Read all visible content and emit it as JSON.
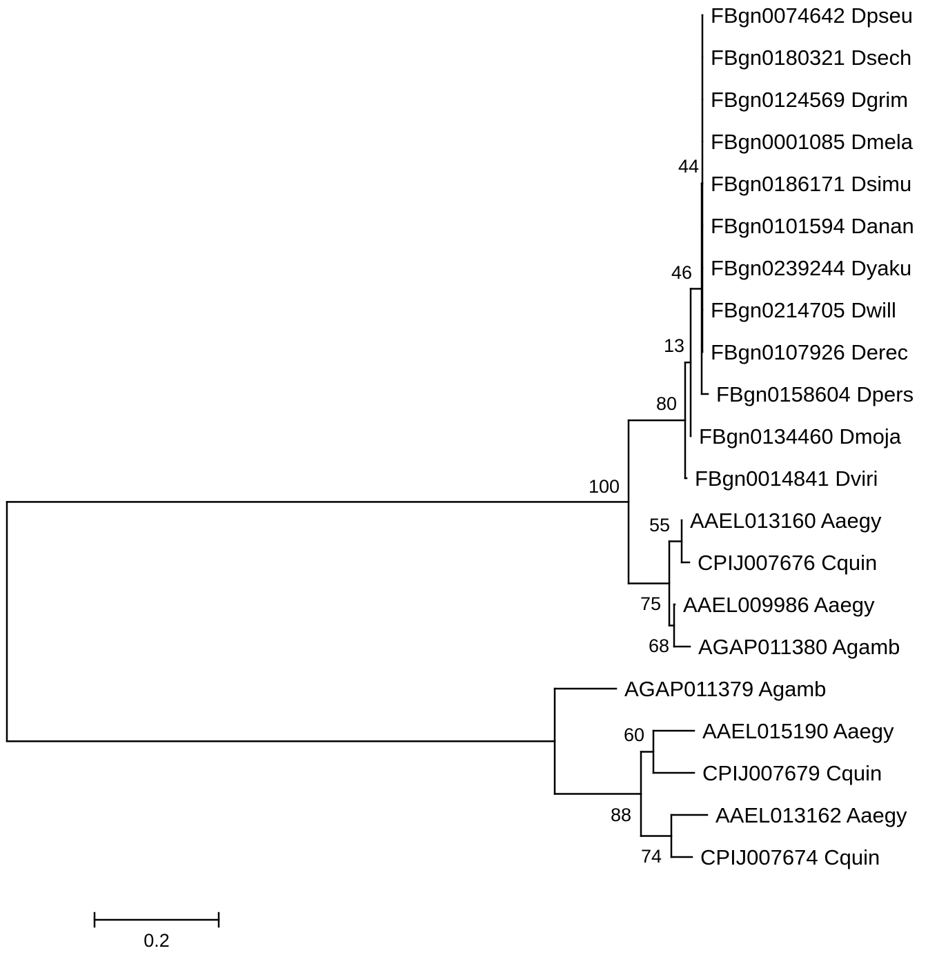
{
  "tree": {
    "leaves": [
      {
        "id": "dpseu",
        "label": "FBgn0074642 Dpseu"
      },
      {
        "id": "dsech",
        "label": "FBgn0180321 Dsech"
      },
      {
        "id": "dgrim",
        "label": "FBgn0124569 Dgrim"
      },
      {
        "id": "dmela",
        "label": "FBgn0001085 Dmela"
      },
      {
        "id": "dsimu",
        "label": "FBgn0186171 Dsimu"
      },
      {
        "id": "danan",
        "label": "FBgn0101594 Danan"
      },
      {
        "id": "dyaku",
        "label": "FBgn0239244 Dyaku"
      },
      {
        "id": "dwill",
        "label": "FBgn0214705 Dwill"
      },
      {
        "id": "derec",
        "label": "FBgn0107926 Derec"
      },
      {
        "id": "dpers",
        "label": "FBgn0158604 Dpers"
      },
      {
        "id": "dmoja",
        "label": "FBgn0134460 Dmoja"
      },
      {
        "id": "dviri",
        "label": "FBgn0014841 Dviri"
      },
      {
        "id": "aael013160",
        "label": "AAEL013160 Aaegy"
      },
      {
        "id": "cpij007676",
        "label": "CPIJ007676 Cquin"
      },
      {
        "id": "aael009986",
        "label": "AAEL009986 Aaegy"
      },
      {
        "id": "agap011380",
        "label": "AGAP011380 Agamb"
      },
      {
        "id": "agap011379",
        "label": "AGAP011379 Agamb"
      },
      {
        "id": "aael015190",
        "label": "AAEL015190 Aaegy"
      },
      {
        "id": "cpij007679",
        "label": "CPIJ007679 Cquin"
      },
      {
        "id": "aael013162",
        "label": "AAEL013162 Aaegy"
      },
      {
        "id": "cpij007674",
        "label": "CPIJ007674 Cquin"
      }
    ],
    "bootstrap_values": {
      "n44": "44",
      "n46": "46",
      "n13": "13",
      "n80": "80",
      "n100": "100",
      "n55": "55",
      "n75": "75",
      "n68": "68",
      "n60": "60",
      "n88": "88",
      "n74": "74"
    }
  },
  "scale_bar": {
    "value": 0.2,
    "label": "0.2"
  }
}
